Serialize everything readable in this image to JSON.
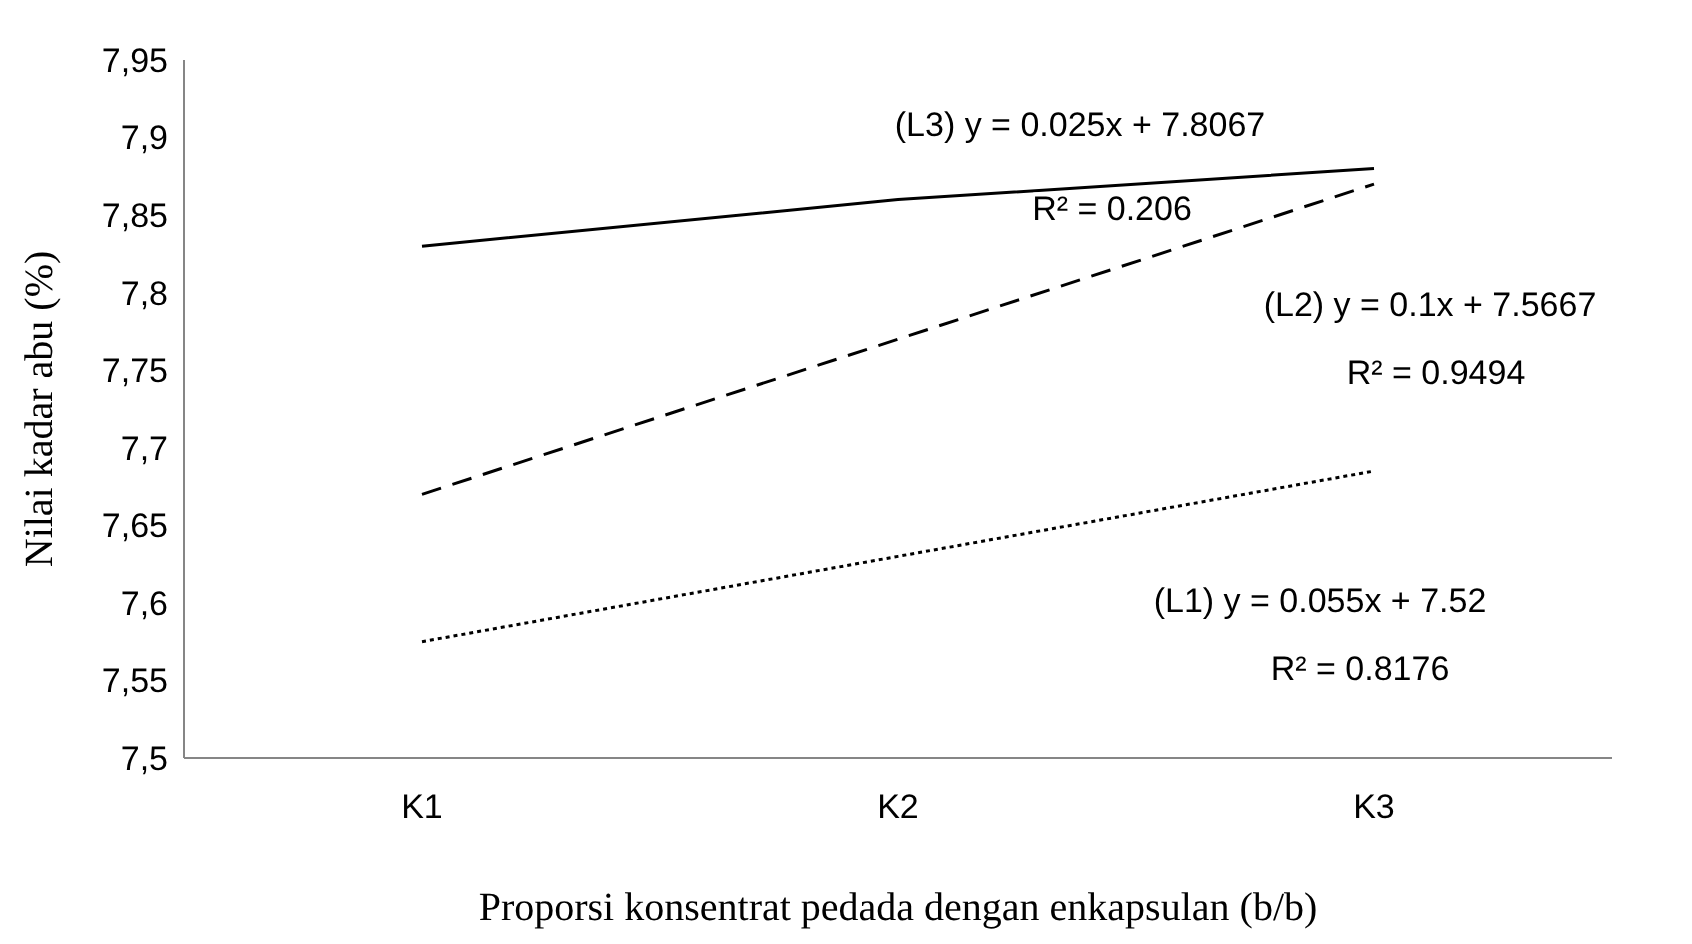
{
  "chart_data": {
    "type": "line",
    "xlabel": "Proporsi konsentrat pedada dengan enkapsulan (b/b)",
    "ylabel": "Nilai kadar abu (%)",
    "categories": [
      "K1",
      "K2",
      "K3"
    ],
    "series": [
      {
        "color": "#000000",
        "line_style": "solid",
        "values": [
          7.83,
          7.86,
          7.88
        ]
      },
      {
        "color": "#000000",
        "line_style": "dashed",
        "values": [
          7.67,
          7.77,
          7.87
        ]
      },
      {
        "color": "#000000",
        "line_style": "dotted",
        "values": [
          7.575,
          7.63,
          7.685
        ]
      }
    ],
    "ylim": [
      7.5,
      7.95
    ],
    "yticks": [
      {
        "value": 7.5,
        "label": "7,5"
      },
      {
        "value": 7.55,
        "label": "7,55"
      },
      {
        "value": 7.6,
        "label": "7,6"
      },
      {
        "value": 7.65,
        "label": "7,65"
      },
      {
        "value": 7.7,
        "label": "7,7"
      },
      {
        "value": 7.75,
        "label": "7,75"
      },
      {
        "value": 7.8,
        "label": "7,8"
      },
      {
        "value": 7.85,
        "label": "7,85"
      },
      {
        "value": 7.9,
        "label": "7,9"
      },
      {
        "value": 7.95,
        "label": "7,95"
      }
    ],
    "annotations": [
      "(L3) y = 0.025x + 7.8067",
      "R² = 0.206",
      "(L2) y = 0.1x + 7.5667",
      "R² = 0.9494",
      "(L1) y = 0.055x + 7.52",
      "R² = 0.8176"
    ],
    "grid": false,
    "marker": "none"
  }
}
